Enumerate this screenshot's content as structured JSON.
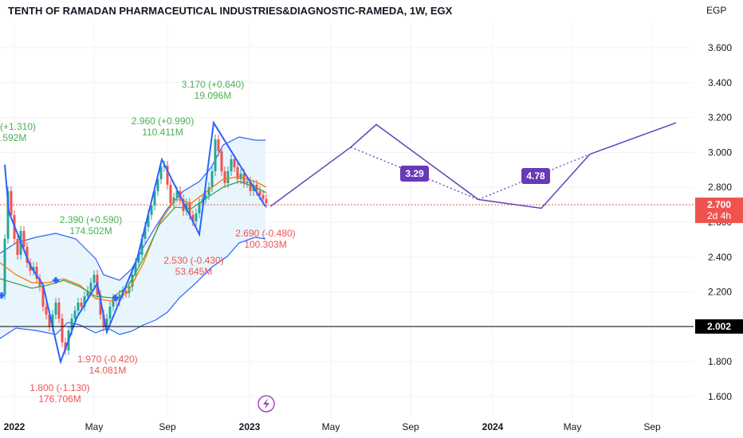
{
  "header": {
    "title": "TENTH OF RAMADAN PHARMACEUTICAL INDUSTRIES&DIAGNOSTIC-RAMEDA, 1W, EGX",
    "currency": "EGP"
  },
  "chart_data": {
    "type": "line",
    "title": "TENTH OF RAMADAN PHARMACEUTICAL INDUSTRIES&DIAGNOSTIC-RAMEDA, 1W, EGX",
    "ylabel": "EGP",
    "ylim": [
      1.5,
      3.7
    ],
    "y_ticks": [
      "1.600",
      "1.800",
      "2.000",
      "2.200",
      "2.400",
      "2.600",
      "2.800",
      "3.000",
      "3.200",
      "3.400",
      "3.600"
    ],
    "x_ticks": [
      "2022",
      "May",
      "Sep",
      "2023",
      "May",
      "Sep",
      "2024",
      "May",
      "Sep"
    ],
    "current_price": {
      "value": "2.700",
      "countdown": "2d 4h",
      "y": 2.7
    },
    "level_line": {
      "value": "2.002",
      "y": 2.002
    },
    "annotations": [
      {
        "price": "(+1.310)",
        "volume": ".592M",
        "kind": "high"
      },
      {
        "price": "2.960 (+0.990)",
        "volume": "110.411M",
        "kind": "high"
      },
      {
        "price": "3.170 (+0.640)",
        "volume": "19.096M",
        "kind": "high"
      },
      {
        "price": "2.390 (+0.590)",
        "volume": "174.502M",
        "kind": "high"
      },
      {
        "price": "2.690 (-0.480)",
        "volume": "100.303M",
        "kind": "low"
      },
      {
        "price": "2.530 (-0.430)",
        "volume": "53.645M",
        "kind": "low"
      },
      {
        "price": "1.970 (-0.420)",
        "volume": "14.081M",
        "kind": "low"
      },
      {
        "price": "1.800 (-1.130)",
        "volume": "176.706M",
        "kind": "low"
      }
    ],
    "ratio_labels": [
      "3.29",
      "4.78"
    ],
    "series": [
      {
        "values": [
          2.93,
          2.66,
          2.35,
          2.24,
          1.8,
          2.05,
          2.25,
          1.97,
          2.39,
          2.96,
          2.53,
          3.17,
          2.69
        ],
        "label": "zigzag"
      }
    ],
    "projection": {
      "path": [
        2.69,
        3.03,
        3.16,
        2.73,
        2.68,
        2.99,
        3.17
      ],
      "dotted_guides": [
        "3.29",
        "4.78"
      ]
    },
    "colors": {
      "up": "#26a69a",
      "down": "#ef5350",
      "zigzag": "#2962ff",
      "projection": "#5c45b8",
      "band_fill": "#e3f2fd",
      "band_line": "#2962ff",
      "ma_orange": "#f57c00",
      "ma_green": "#43a047",
      "level": "#000000",
      "price_tag": "#ef5350"
    }
  }
}
